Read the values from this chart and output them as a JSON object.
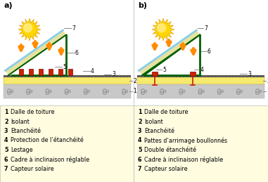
{
  "title_a": "a)",
  "title_b": "b)",
  "legend_a": [
    "1 Dalle de toiture",
    "2 Isolant",
    "3 Etanchéité",
    "4 Protection de l’étanchéité",
    "5 Lestage",
    "6 Cadre à inclinaison réglable",
    "7 Capteur solaire"
  ],
  "legend_b": [
    "1 Dalle de toiture",
    "2 Isolant",
    "3 Etanchéité",
    "4 Pattes d’arrimage boullonnés",
    "5 Double étanchéité",
    "6 Cadre à inclinaison réglable",
    "7 Capteur solaire"
  ],
  "panel_fill": "#E8E2A0",
  "panel_top_edge": "#87CEEB",
  "panel_bot_edge": "#006000",
  "frame_color": "#006000",
  "insulation_color": "#F5E96E",
  "concrete_color": "#C8C8C8",
  "etancheite_color": "#444444",
  "red_color": "#CC2200",
  "legend_bg": "#FFFCE0",
  "diagram_bg": "#FFFFFF",
  "sun_body": "#FFD700",
  "sun_ray": "#FF8C00",
  "arrow_color": "#FF8C00",
  "label_line_color": "#777777",
  "text_color": "#000000",
  "border_color": "#BBBBBB"
}
